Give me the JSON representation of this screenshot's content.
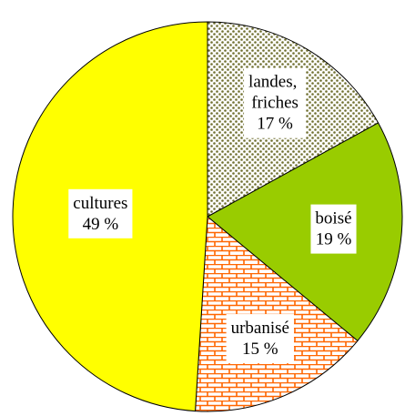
{
  "chart_data": {
    "type": "pie",
    "categories": [
      "landes, friches",
      "boisé",
      "urbanisé",
      "cultures"
    ],
    "values": [
      17,
      19,
      15,
      49
    ],
    "value_labels": [
      "17 %",
      "19 %",
      "15 %",
      "49 %"
    ],
    "colors": [
      "#707030",
      "#99cc00",
      "#ff6600",
      "#ffff00"
    ],
    "patterns": [
      "dots",
      "solid",
      "bricks",
      "solid"
    ]
  }
}
